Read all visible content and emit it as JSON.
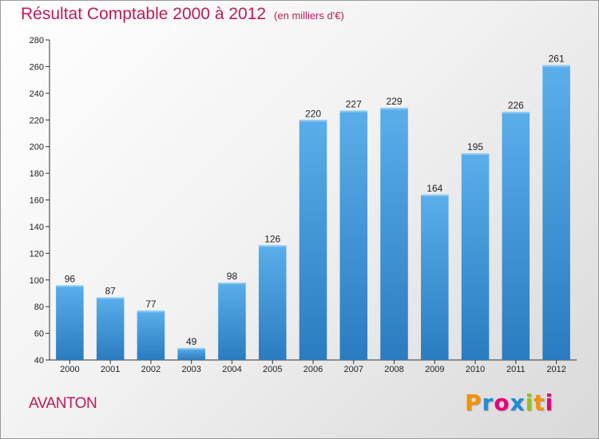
{
  "title": "Résultat Comptable 2000 à 2012",
  "subtitle": "(en milliers d'€)",
  "location": "AVANTON",
  "brand": {
    "letters": [
      "P",
      "r",
      "o",
      "x",
      "i",
      "t",
      "i"
    ],
    "colors": [
      "#f39200",
      "#1f8dd6",
      "#e6007e",
      "#1f8dd6",
      "#95c11f",
      "#f39200",
      "#e6007e"
    ]
  },
  "colors": {
    "title": "#c2185b",
    "bar_top": "#5aaeea",
    "bar_bottom": "#2a7cc0"
  },
  "chart_data": {
    "type": "bar",
    "categories": [
      "2000",
      "2001",
      "2002",
      "2003",
      "2004",
      "2005",
      "2006",
      "2007",
      "2008",
      "2009",
      "2010",
      "2011",
      "2012"
    ],
    "values": [
      96,
      87,
      77,
      49,
      98,
      126,
      220,
      227,
      229,
      164,
      195,
      226,
      261
    ],
    "ylim": [
      40,
      280
    ],
    "yticks": [
      40,
      60,
      80,
      100,
      120,
      140,
      160,
      180,
      200,
      220,
      240,
      260,
      280
    ],
    "grid": false,
    "legend": "none"
  }
}
